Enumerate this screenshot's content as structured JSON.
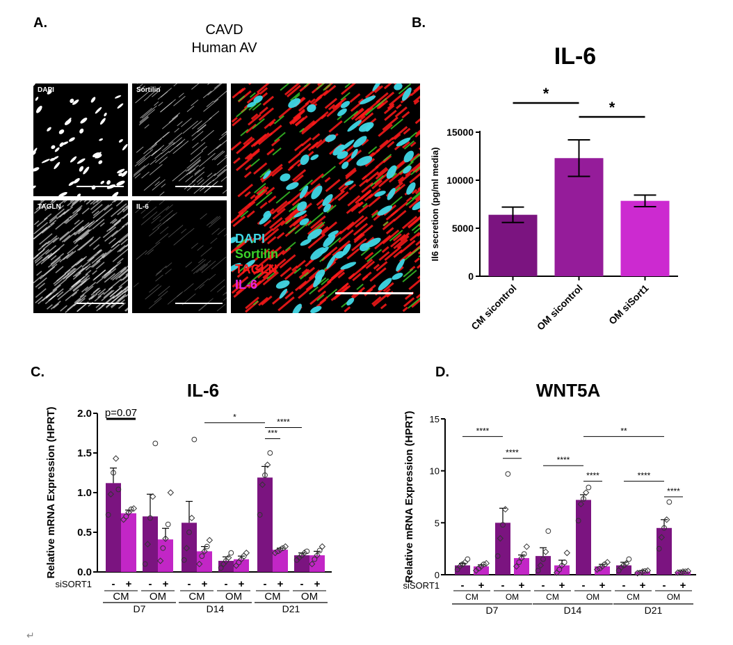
{
  "panel_a": {
    "letter": "A.",
    "title_line1": "CAVD",
    "title_line2": "Human AV",
    "tiles": [
      {
        "label": "DAPI",
        "color": "#ffffff"
      },
      {
        "label": "Sortilin",
        "color": "#dddddd"
      },
      {
        "label": "TAGLN",
        "color": "#eeeeee"
      },
      {
        "label": "IL-6",
        "color": "#aaaaaa"
      }
    ],
    "merge_legend": [
      {
        "label": "DAPI",
        "color": "#3fd7e6"
      },
      {
        "label": "Sortilin",
        "color": "#3bd12a"
      },
      {
        "label": "TAGLN",
        "color": "#ff1a1a"
      },
      {
        "label": "IL-6",
        "color": "#e028e0"
      }
    ]
  },
  "panel_b": {
    "letter": "B."
  },
  "panel_c": {
    "letter": "C."
  },
  "panel_d": {
    "letter": "D."
  },
  "footer": {
    "mark": "↵"
  },
  "chart_data": [
    {
      "id": "B",
      "type": "bar",
      "title": "IL-6",
      "ylabel": "Il6 secretion (pg/ml media)",
      "ylim": [
        0,
        15000
      ],
      "yticks": [
        0,
        5000,
        10000,
        15000
      ],
      "categories": [
        "CM sicontrol",
        "OM sicontrol",
        "OM siSort1"
      ],
      "values": [
        6400,
        12300,
        7850
      ],
      "errors": [
        800,
        1900,
        600
      ],
      "colors": [
        "#7b1480",
        "#951c9a",
        "#cc2ad0"
      ],
      "significance": [
        {
          "from": 0,
          "to": 1,
          "label": "*"
        },
        {
          "from": 1,
          "to": 2,
          "label": "*"
        }
      ]
    },
    {
      "id": "C",
      "type": "bar",
      "title": "IL-6",
      "ylabel": "Relative mRNA Expression (HPRT)",
      "ylim": [
        0,
        2.0
      ],
      "yticks": [
        "0.0",
        "0.5",
        "1.0",
        "1.5",
        "2.0"
      ],
      "treatment_label": "siSORT1",
      "signs": [
        "-",
        "+"
      ],
      "groups": [
        {
          "time": "D7",
          "conditions": [
            {
              "label": "CM",
              "bars": [
                {
                  "value": 1.12,
                  "error": 0.19,
                  "points": [
                    0.72,
                    0.98,
                    1.25,
                    1.43,
                    1.04
                  ]
                },
                {
                  "value": 0.74,
                  "error": 0.04,
                  "points": [
                    0.66,
                    0.7,
                    0.75,
                    0.79,
                    0.8
                  ]
                }
              ]
            },
            {
              "label": "OM",
              "bars": [
                {
                  "value": 0.7,
                  "error": 0.28,
                  "points": [
                    0.1,
                    0.35,
                    0.68,
                    0.95,
                    1.62
                  ]
                },
                {
                  "value": 0.41,
                  "error": 0.14,
                  "points": [
                    0.14,
                    0.3,
                    0.42,
                    0.6,
                    1.0
                  ]
                }
              ]
            }
          ]
        },
        {
          "time": "D14",
          "conditions": [
            {
              "label": "CM",
              "bars": [
                {
                  "value": 0.62,
                  "error": 0.27,
                  "points": [
                    0.15,
                    0.3,
                    0.5,
                    0.68,
                    1.67
                  ]
                },
                {
                  "value": 0.26,
                  "error": 0.06,
                  "points": [
                    0.1,
                    0.2,
                    0.26,
                    0.32,
                    0.4
                  ]
                }
              ]
            },
            {
              "label": "OM",
              "bars": [
                {
                  "value": 0.14,
                  "error": 0.05,
                  "points": [
                    0.05,
                    0.1,
                    0.14,
                    0.18,
                    0.24
                  ]
                },
                {
                  "value": 0.16,
                  "error": 0.04,
                  "points": [
                    0.08,
                    0.12,
                    0.16,
                    0.2,
                    0.24
                  ]
                }
              ]
            }
          ]
        },
        {
          "time": "D21",
          "conditions": [
            {
              "label": "CM",
              "bars": [
                {
                  "value": 1.19,
                  "error": 0.14,
                  "points": [
                    0.72,
                    1.1,
                    1.22,
                    1.35,
                    1.5
                  ]
                },
                {
                  "value": 0.28,
                  "error": 0.02,
                  "points": [
                    0.24,
                    0.26,
                    0.28,
                    0.3,
                    0.32
                  ]
                }
              ]
            },
            {
              "label": "OM",
              "bars": [
                {
                  "value": 0.21,
                  "error": 0.03,
                  "points": [
                    0.15,
                    0.18,
                    0.21,
                    0.24,
                    0.26
                  ]
                },
                {
                  "value": 0.21,
                  "error": 0.05,
                  "points": [
                    0.1,
                    0.16,
                    0.21,
                    0.27,
                    0.32
                  ]
                }
              ]
            }
          ]
        }
      ],
      "significance": [
        {
          "from": 0,
          "to": 1,
          "y": 1.93,
          "label": "p=0.07",
          "thick": true
        },
        {
          "from": 5,
          "to": 8,
          "y": 1.88,
          "label": "*"
        },
        {
          "from": 8,
          "to": 10,
          "y": 1.82,
          "label": "****"
        },
        {
          "from": 8,
          "to": 9,
          "y": 1.68,
          "label": "***"
        }
      ]
    },
    {
      "id": "D",
      "type": "bar",
      "title": "WNT5A",
      "ylabel": "Relative mRNA Expression (HPRT)",
      "ylim": [
        0,
        15
      ],
      "yticks": [
        "0",
        "5",
        "10",
        "15"
      ],
      "treatment_label": "siSORT1",
      "signs": [
        "-",
        "+"
      ],
      "groups": [
        {
          "time": "D7",
          "conditions": [
            {
              "label": "CM",
              "bars": [
                {
                  "value": 0.9,
                  "error": 0.2,
                  "points": [
                    0.5,
                    0.8,
                    1.0,
                    1.2,
                    1.5
                  ]
                },
                {
                  "value": 0.8,
                  "error": 0.15,
                  "points": [
                    0.4,
                    0.6,
                    0.8,
                    1.0,
                    1.1
                  ]
                }
              ]
            },
            {
              "label": "OM",
              "bars": [
                {
                  "value": 5.0,
                  "error": 1.4,
                  "points": [
                    1.8,
                    3.5,
                    4.8,
                    6.3,
                    9.7
                  ]
                },
                {
                  "value": 1.6,
                  "error": 0.3,
                  "points": [
                    0.8,
                    1.2,
                    1.6,
                    2.0,
                    2.7
                  ]
                }
              ]
            }
          ]
        },
        {
          "time": "D14",
          "conditions": [
            {
              "label": "CM",
              "bars": [
                {
                  "value": 1.8,
                  "error": 0.8,
                  "points": [
                    0.4,
                    0.9,
                    1.5,
                    2.2,
                    4.2
                  ]
                },
                {
                  "value": 0.9,
                  "error": 0.5,
                  "points": [
                    0.2,
                    0.5,
                    0.9,
                    1.2,
                    2.1
                  ]
                }
              ]
            },
            {
              "label": "OM",
              "bars": [
                {
                  "value": 7.2,
                  "error": 0.5,
                  "points": [
                    5.2,
                    6.8,
                    7.3,
                    7.9,
                    8.4
                  ]
                },
                {
                  "value": 0.8,
                  "error": 0.2,
                  "points": [
                    0.5,
                    0.6,
                    0.8,
                    1.0,
                    1.2
                  ]
                }
              ]
            }
          ]
        },
        {
          "time": "D21",
          "conditions": [
            {
              "label": "CM",
              "bars": [
                {
                  "value": 0.9,
                  "error": 0.3,
                  "points": [
                    0.4,
                    0.7,
                    0.9,
                    1.1,
                    1.5
                  ]
                },
                {
                  "value": 0.3,
                  "error": 0.1,
                  "points": [
                    0.15,
                    0.2,
                    0.3,
                    0.35,
                    0.4
                  ]
                }
              ]
            },
            {
              "label": "OM",
              "bars": [
                {
                  "value": 4.5,
                  "error": 0.8,
                  "points": [
                    2.5,
                    3.6,
                    4.5,
                    5.3,
                    7.0
                  ]
                },
                {
                  "value": 0.3,
                  "error": 0.05,
                  "points": [
                    0.2,
                    0.25,
                    0.3,
                    0.32,
                    0.35
                  ]
                }
              ]
            }
          ]
        }
      ],
      "significance": [
        {
          "from": 0,
          "to": 2,
          "y": 13.3,
          "label": "****"
        },
        {
          "from": 2,
          "to": 3,
          "y": 11.2,
          "label": "****"
        },
        {
          "from": 4,
          "to": 6,
          "y": 10.5,
          "label": "****"
        },
        {
          "from": 6,
          "to": 7,
          "y": 9.0,
          "label": "****"
        },
        {
          "from": 6,
          "to": 10,
          "y": 13.3,
          "label": "**"
        },
        {
          "from": 8,
          "to": 10,
          "y": 9.0,
          "label": "****"
        },
        {
          "from": 10,
          "to": 11,
          "y": 7.5,
          "label": "****"
        }
      ]
    }
  ]
}
